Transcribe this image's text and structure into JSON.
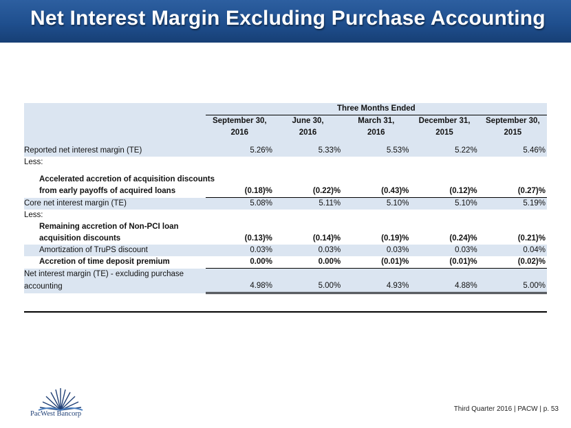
{
  "header": {
    "title": "Net Interest Margin Excluding Purchase Accounting"
  },
  "table": {
    "group_header": "Three Months Ended",
    "columns": [
      {
        "line1": "September 30,",
        "line2": "2016"
      },
      {
        "line1": "June 30,",
        "line2": "2016"
      },
      {
        "line1": "March 31,",
        "line2": "2016"
      },
      {
        "line1": "December 31,",
        "line2": "2015"
      },
      {
        "line1": "September 30,",
        "line2": "2015"
      }
    ],
    "rows": [
      {
        "label": "Reported net interest margin (TE)",
        "values": [
          "5.26%",
          "5.33%",
          "5.53%",
          "5.22%",
          "5.46%"
        ]
      },
      {
        "label": "Less:"
      },
      {
        "label_line1": "Accelerated accretion of acquisition discounts",
        "label_line2": "from early payoffs of acquired loans",
        "values": [
          "(0.18)%",
          "(0.22)%",
          "(0.43)%",
          "(0.12)%",
          "(0.27)%"
        ]
      },
      {
        "label": "Core net interest margin (TE)",
        "values": [
          "5.08%",
          "5.11%",
          "5.10%",
          "5.10%",
          "5.19%"
        ]
      },
      {
        "label": "Less:"
      },
      {
        "label_line1": "Remaining accretion of Non-PCI loan",
        "label_line2": "acquisition discounts",
        "values": [
          "(0.13)%",
          "(0.14)%",
          "(0.19)%",
          "(0.24)%",
          "(0.21)%"
        ]
      },
      {
        "label": "Amortization of TruPS discount",
        "values": [
          "0.03%",
          "0.03%",
          "0.03%",
          "0.03%",
          "0.04%"
        ]
      },
      {
        "label": "Accretion of time deposit premium",
        "values": [
          "0.00%",
          "0.00%",
          "(0.01)%",
          "(0.01)%",
          "(0.02)%"
        ]
      },
      {
        "label_line1": "Net interest margin (TE) - excluding purchase",
        "label_line2": "accounting",
        "values": [
          "4.98%",
          "5.00%",
          "4.93%",
          "4.88%",
          "5.00%"
        ]
      }
    ]
  },
  "logo": {
    "text": "PacWest Bancorp"
  },
  "footer": {
    "text": "Third Quarter 2016 | PACW | p. 53"
  }
}
